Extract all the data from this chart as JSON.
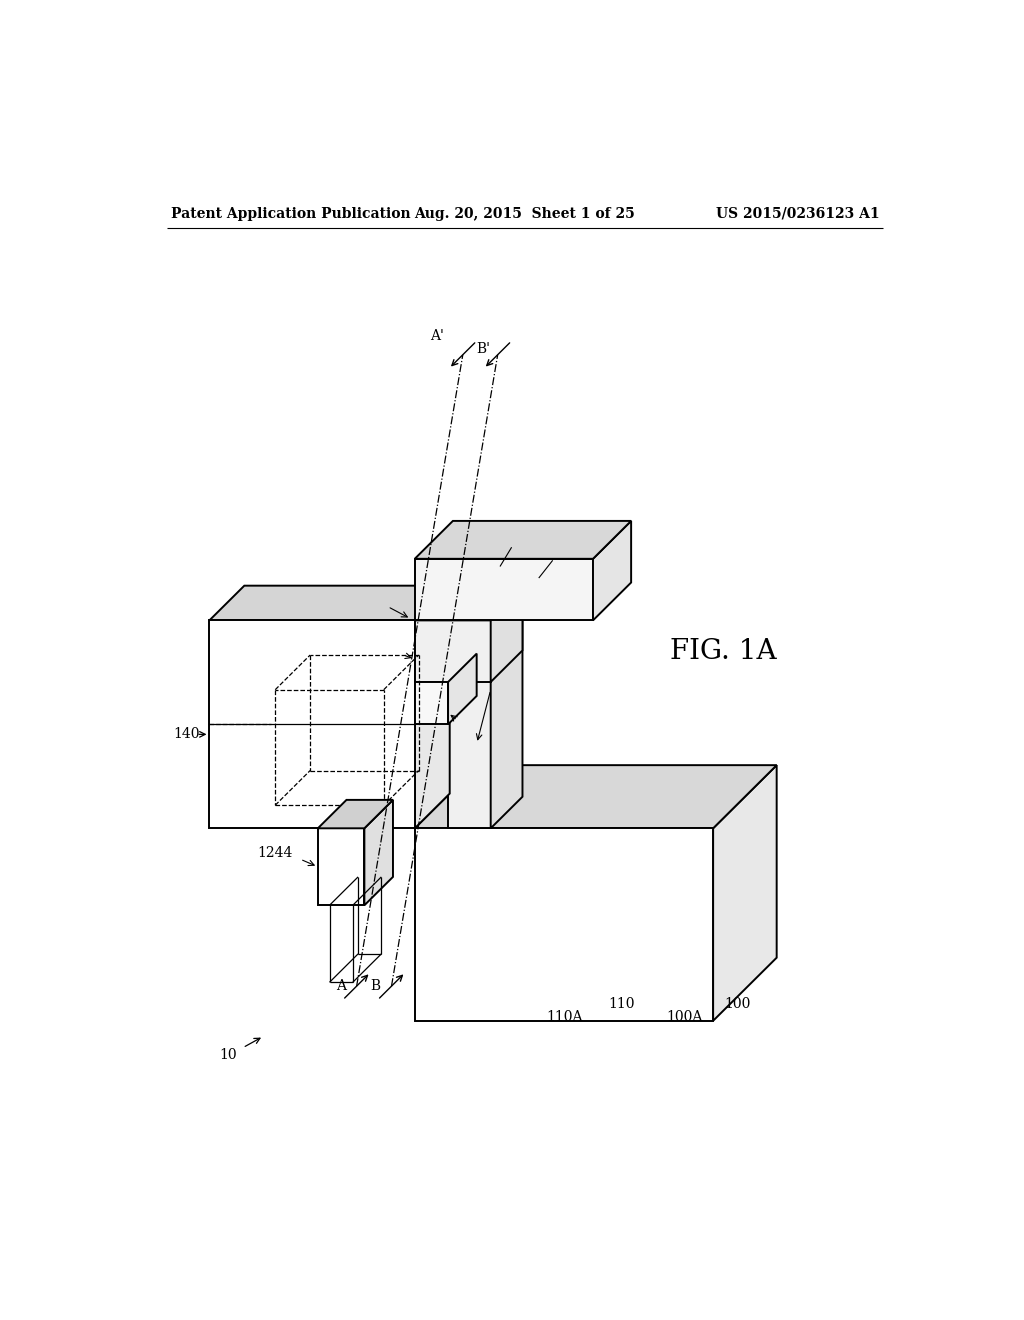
{
  "bg": "#ffffff",
  "lc": "#000000",
  "header_left": "Patent Application Publication",
  "header_mid": "Aug. 20, 2015  Sheet 1 of 25",
  "header_right": "US 2015/0236123 A1",
  "fig_label": "FIG. 1A"
}
